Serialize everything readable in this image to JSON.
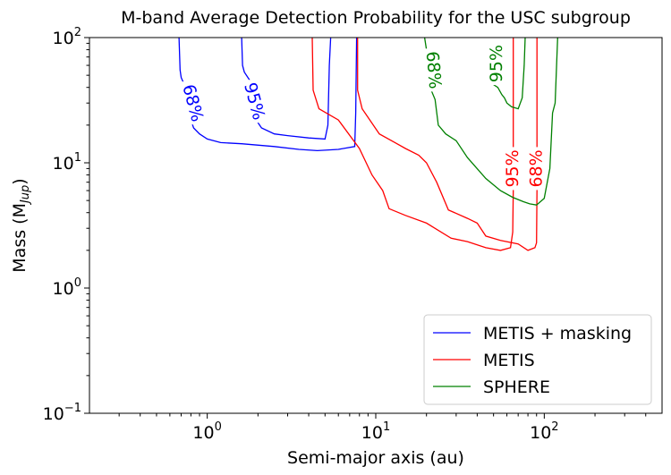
{
  "chart_data": {
    "type": "contour",
    "title": "M-band Average Detection Probability for the USC subgroup",
    "xlabel": "Semi-major axis (au)",
    "ylabel": "Mass (M",
    "ylabel_sub": "Jup",
    "ylabel_close": ")",
    "xscale": "log",
    "yscale": "log",
    "xlim": [
      0.2,
      500
    ],
    "ylim": [
      0.1,
      100
    ],
    "x_ticks": [
      {
        "base": "10",
        "exp": "0",
        "value": 1
      },
      {
        "base": "10",
        "exp": "1",
        "value": 10
      },
      {
        "base": "10",
        "exp": "2",
        "value": 100
      }
    ],
    "y_ticks": [
      {
        "base": "10",
        "exp": "−1",
        "value": 0.1
      },
      {
        "base": "10",
        "exp": "0",
        "value": 1
      },
      {
        "base": "10",
        "exp": "1",
        "value": 10
      },
      {
        "base": "10",
        "exp": "2",
        "value": 100
      }
    ],
    "legend_position": "lower-right",
    "series": [
      {
        "name": "METIS + masking",
        "color": "#0000ff",
        "contours": [
          {
            "level": "68%",
            "label_at": [
              0.82,
              30
            ],
            "points": [
              [
                0.68,
                100
              ],
              [
                0.69,
                55
              ],
              [
                0.7,
                48
              ],
              [
                0.72,
                44
              ],
              [
                0.78,
                35
              ],
              [
                0.8,
                22
              ],
              [
                0.83,
                19
              ],
              [
                0.9,
                17
              ],
              [
                1.0,
                15.5
              ],
              [
                1.2,
                14.5
              ],
              [
                1.6,
                14.2
              ],
              [
                2.5,
                13.5
              ],
              [
                3.5,
                12.8
              ],
              [
                4.5,
                12.5
              ],
              [
                6.0,
                12.8
              ],
              [
                7.5,
                13.5
              ],
              [
                7.6,
                25
              ],
              [
                7.7,
                100
              ]
            ]
          },
          {
            "level": "95%",
            "label_at": [
              1.9,
              31
            ],
            "points": [
              [
                1.6,
                100
              ],
              [
                1.62,
                60
              ],
              [
                1.66,
                53
              ],
              [
                1.8,
                45
              ],
              [
                1.95,
                22
              ],
              [
                2.1,
                19
              ],
              [
                2.5,
                17
              ],
              [
                3.0,
                16.5
              ],
              [
                4.0,
                15.8
              ],
              [
                5.0,
                15.5
              ],
              [
                5.2,
                20
              ],
              [
                5.3,
                60
              ],
              [
                5.4,
                100
              ]
            ]
          }
        ]
      },
      {
        "name": "METIS",
        "color": "#ff0000",
        "contours": [
          {
            "level": "95%",
            "label_at": [
              65,
              9
            ],
            "points": [
              [
                4.2,
                100
              ],
              [
                4.25,
                38
              ],
              [
                4.6,
                27
              ],
              [
                6.0,
                22
              ],
              [
                8.0,
                13
              ],
              [
                9.5,
                8
              ],
              [
                11.0,
                6
              ],
              [
                12.0,
                4.3
              ],
              [
                15.0,
                3.8
              ],
              [
                20.0,
                3.3
              ],
              [
                28.0,
                2.5
              ],
              [
                35.0,
                2.35
              ],
              [
                45.0,
                2.1
              ],
              [
                55.0,
                2.0
              ],
              [
                63.0,
                2.1
              ],
              [
                65.0,
                2.8
              ],
              [
                65.5,
                6
              ],
              [
                65.5,
                100
              ]
            ]
          },
          {
            "level": "68%",
            "label_at": [
              90,
              9
            ],
            "points": [
              [
                7.8,
                100
              ],
              [
                7.8,
                38
              ],
              [
                8.3,
                27
              ],
              [
                10.5,
                17
              ],
              [
                13.0,
                14.5
              ],
              [
                15.0,
                13
              ],
              [
                18.0,
                11.5
              ],
              [
                20.0,
                10
              ],
              [
                23.0,
                7
              ],
              [
                27.0,
                4.2
              ],
              [
                35.0,
                3.6
              ],
              [
                40.0,
                3.3
              ],
              [
                45.0,
                2.6
              ],
              [
                55.0,
                2.4
              ],
              [
                70.0,
                2.25
              ],
              [
                80.0,
                2.0
              ],
              [
                88.0,
                2.1
              ],
              [
                90.0,
                2.3
              ],
              [
                90.5,
                6
              ],
              [
                90.5,
                100
              ]
            ]
          }
        ]
      },
      {
        "name": "SPHERE",
        "color": "#008000",
        "contours": [
          {
            "level": "68%",
            "label_at": [
              22,
              55
            ],
            "points": [
              [
                19.5,
                100
              ],
              [
                20.0,
                80
              ],
              [
                21.0,
                40
              ],
              [
                22.5,
                32
              ],
              [
                23.5,
                20
              ],
              [
                26.0,
                17
              ],
              [
                30.0,
                15
              ],
              [
                35.0,
                11
              ],
              [
                45.0,
                7.5
              ],
              [
                55.0,
                6.0
              ],
              [
                65.0,
                5.3
              ],
              [
                75.0,
                4.9
              ],
              [
                82.0,
                4.7
              ],
              [
                90.0,
                4.6
              ],
              [
                100.0,
                5.2
              ],
              [
                108.0,
                9
              ],
              [
                112.0,
                25
              ],
              [
                116.0,
                30
              ],
              [
                120.0,
                100
              ]
            ]
          },
          {
            "level": "95%",
            "label_at": [
              52,
              62
            ],
            "points": [
              [
                50.0,
                42
              ],
              [
                53.0,
                40
              ],
              [
                56.0,
                35
              ],
              [
                58.0,
                33
              ],
              [
                60.0,
                30
              ],
              [
                64.0,
                28
              ],
              [
                70.0,
                27
              ],
              [
                74.0,
                33
              ],
              [
                76.0,
                60
              ],
              [
                77.0,
                100
              ]
            ]
          }
        ]
      }
    ]
  }
}
